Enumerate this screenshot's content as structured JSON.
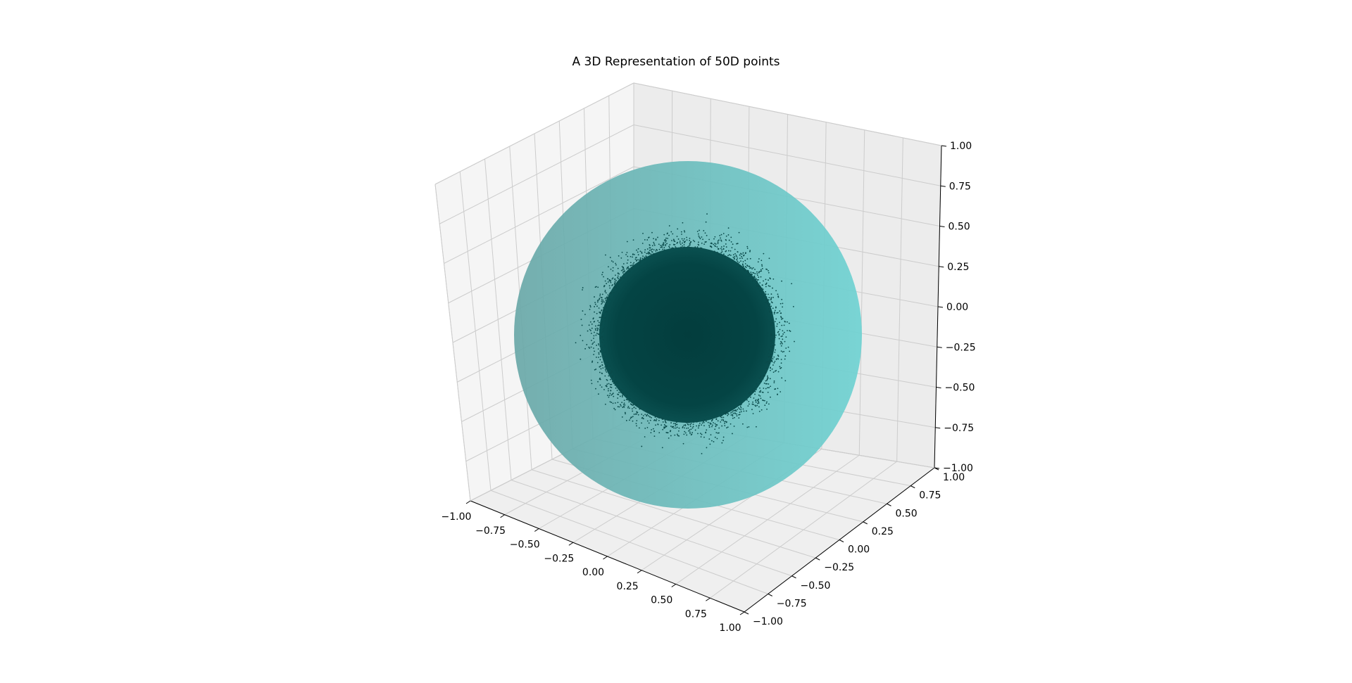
{
  "chart_data": {
    "type": "scatter",
    "title": "A 3D Representation of 50D points",
    "projection": "3d",
    "xlim": [
      -1.0,
      1.0
    ],
    "ylim": [
      -1.0,
      1.0
    ],
    "zlim": [
      -1.0,
      1.0
    ],
    "x_ticks": [
      "−1.00",
      "−0.75",
      "−0.50",
      "−0.25",
      "0.00",
      "0.25",
      "0.50",
      "0.75",
      "1.00"
    ],
    "y_ticks": [
      "−1.00",
      "−0.75",
      "−0.50",
      "−0.25",
      "0.00",
      "0.25",
      "0.50",
      "0.75",
      "1.00"
    ],
    "z_ticks": [
      "−1.00",
      "−0.75",
      "−0.50",
      "−0.25",
      "0.00",
      "0.25",
      "0.50",
      "0.75",
      "1.00"
    ],
    "grid": true,
    "sphere": {
      "center": [
        0,
        0,
        0
      ],
      "radius": 1.0,
      "color": "#5cc8c8",
      "alpha": 0.8
    },
    "points": {
      "center": [
        0,
        0,
        0
      ],
      "approx_radius": 0.5,
      "color": "#0a4a4a",
      "marker_size": "small"
    },
    "colors": {
      "pane": "#f2f2f2",
      "grid": "#cccccc",
      "axis": "#000000"
    }
  }
}
